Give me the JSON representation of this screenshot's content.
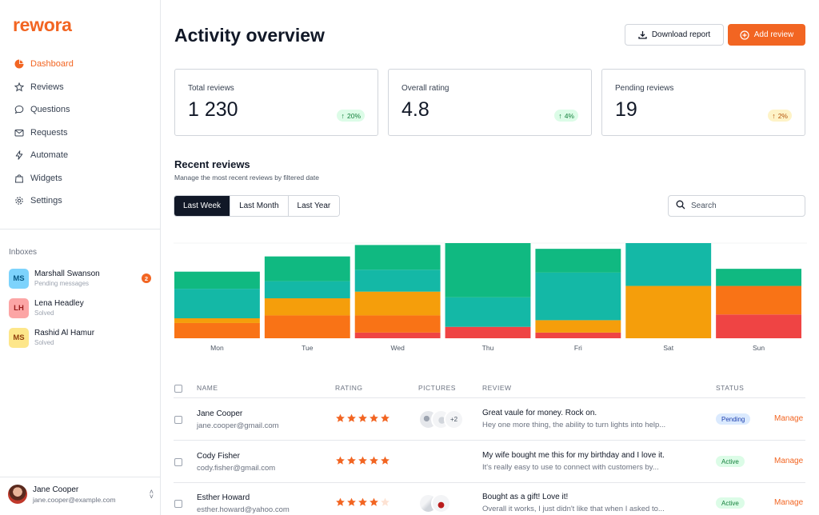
{
  "app": {
    "logo": "rewora"
  },
  "sidebar": {
    "items": [
      {
        "label": "Dashboard",
        "icon": "pie-chart-icon",
        "active": true
      },
      {
        "label": "Reviews",
        "icon": "star-icon"
      },
      {
        "label": "Questions",
        "icon": "chat-bubble-icon"
      },
      {
        "label": "Requests",
        "icon": "mail-icon"
      },
      {
        "label": "Automate",
        "icon": "bolt-icon"
      },
      {
        "label": "Widgets",
        "icon": "shopping-bag-icon"
      },
      {
        "label": "Settings",
        "icon": "gear-icon"
      }
    ],
    "inboxes_title": "Inboxes",
    "inboxes": [
      {
        "initials": "MS",
        "name": "Marshall Swanson",
        "status": "Pending messages",
        "badge": "2",
        "bg": "#7dd3fc",
        "fg": "#075985"
      },
      {
        "initials": "LH",
        "name": "Lena Headley",
        "status": "Solved",
        "badge": "",
        "bg": "#fca5a5",
        "fg": "#991b1b"
      },
      {
        "initials": "MS",
        "name": "Rashid Al Hamur",
        "status": "Solved",
        "badge": "",
        "bg": "#fde68a",
        "fg": "#92400e"
      }
    ],
    "user": {
      "name": "Jane Cooper",
      "email": "jane.cooper@example.com"
    }
  },
  "header": {
    "title": "Activity overview",
    "download_label": "Download report",
    "add_label": "Add review"
  },
  "stats": [
    {
      "label": "Total reviews",
      "value": "1 230",
      "change": "20%",
      "tone": "green"
    },
    {
      "label": "Overall rating",
      "value": "4.8",
      "change": "4%",
      "tone": "green"
    },
    {
      "label": "Pending reviews",
      "value": "19",
      "change": "2%",
      "tone": "amber"
    }
  ],
  "recent": {
    "title": "Recent reviews",
    "subtitle": "Manage the most recent reviews by filtered date",
    "tabs": [
      "Last Week",
      "Last Month",
      "Last Year"
    ],
    "active_tab": "Last Week",
    "search_placeholder": "Search"
  },
  "colors": {
    "brand": "#f26522",
    "series": [
      "#ef4444",
      "#f97316",
      "#f59e0b",
      "#14b8a6",
      "#10b981"
    ]
  },
  "chart_data": {
    "type": "bar",
    "stacked": true,
    "categories": [
      "Mon",
      "Tue",
      "Wed",
      "Thu",
      "Fri",
      "Sat",
      "Sun"
    ],
    "series": [
      {
        "values": [
          0,
          0,
          6,
          12,
          6,
          0,
          25
        ]
      },
      {
        "values": [
          16,
          24,
          18,
          0,
          0,
          0,
          30
        ]
      },
      {
        "values": [
          5,
          18,
          25,
          0,
          13,
          55,
          0
        ]
      },
      {
        "values": [
          31,
          18,
          23,
          31,
          50,
          45,
          0
        ]
      },
      {
        "values": [
          18,
          26,
          26,
          57,
          25,
          0,
          18
        ]
      }
    ],
    "ylim": [
      0,
      100
    ],
    "grid": false,
    "legend": "none"
  },
  "table": {
    "headers": {
      "name": "NAME",
      "rating": "RATING",
      "pictures": "PICTURES",
      "review": "REVIEW",
      "status": "STATUS"
    },
    "rows": [
      {
        "name": "Jane Cooper",
        "email": "jane.cooper@gmail.com",
        "rating": 5,
        "pictures_more": "+2",
        "pictures": true,
        "review_title": "Great vaule for money. Rock on.",
        "review_body": "Hey one more thing, the ability to turn lights into help...",
        "status": "Pending",
        "status_tone": "pending",
        "action": "Manage"
      },
      {
        "name": "Cody Fisher",
        "email": "cody.fisher@gmail.com",
        "rating": 5,
        "pictures_more": "",
        "pictures": false,
        "review_title": "My wife bought me this for my birthday and I love it.",
        "review_body": "It's really easy to use to connect with customers by...",
        "status": "Active",
        "status_tone": "active",
        "action": "Manage"
      },
      {
        "name": "Esther Howard",
        "email": "esther.howard@yahoo.com",
        "rating": 4,
        "pictures_more": "",
        "pictures": true,
        "review_title": "Bought as a gift! Love it!",
        "review_body": "Overall it works, I just didn't like that when I asked to...",
        "status": "Active",
        "status_tone": "active",
        "action": "Manage"
      }
    ]
  }
}
